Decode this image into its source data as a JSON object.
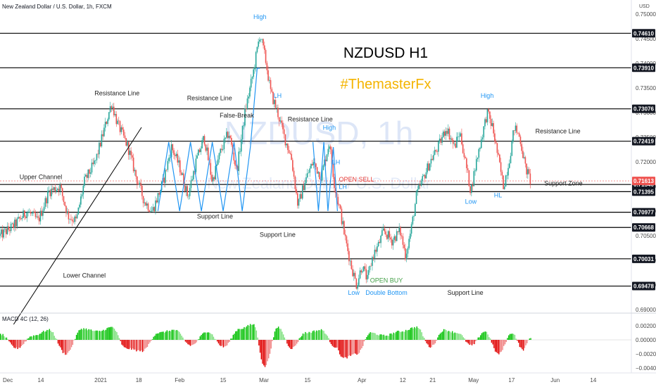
{
  "chart_data": {
    "type": "candlestick",
    "symbol_title": "New Zealand Dollar / U.S. Dollar, 1h, FXCM",
    "currency_label": "USD",
    "watermark": {
      "symbol": "NZDUSD, 1h",
      "name": "New Zealand Dollar / U.S. Dollar"
    },
    "heading": "NZDUSD H1",
    "brand": "#ThemasterFx",
    "ylim": [
      0.69,
      0.75
    ],
    "y_ticks": [
      {
        "value": 0.75,
        "label": "0.75000"
      },
      {
        "value": 0.745,
        "label": "0.74500"
      },
      {
        "value": 0.74,
        "label": "0.74000"
      },
      {
        "value": 0.735,
        "label": "0.73500"
      },
      {
        "value": 0.73,
        "label": "0.73000"
      },
      {
        "value": 0.725,
        "label": "0.72500"
      },
      {
        "value": 0.72,
        "label": "0.72000"
      },
      {
        "value": 0.715,
        "label": "0.71500"
      },
      {
        "value": 0.71,
        "label": "0.71000"
      },
      {
        "value": 0.705,
        "label": "0.70500"
      },
      {
        "value": 0.7,
        "label": "0.70000"
      },
      {
        "value": 0.695,
        "label": "0.69500"
      },
      {
        "value": 0.69,
        "label": "0.69000"
      }
    ],
    "x_ticks": [
      {
        "label": "Dec",
        "x": 0
      },
      {
        "label": "14",
        "x": 1.5
      },
      {
        "label": "2021",
        "x": 3.7
      },
      {
        "label": "18",
        "x": 5.1
      },
      {
        "label": "Feb",
        "x": 6.6
      },
      {
        "label": "15",
        "x": 8.2
      },
      {
        "label": "Mar",
        "x": 9.7
      },
      {
        "label": "15",
        "x": 11.3
      },
      {
        "label": "Apr",
        "x": 13.3
      },
      {
        "label": "12",
        "x": 14.8
      },
      {
        "label": "21",
        "x": 15.9
      },
      {
        "label": "May",
        "x": 17.4
      },
      {
        "label": "17",
        "x": 18.8
      },
      {
        "label": "Jun",
        "x": 20.4
      },
      {
        "label": "14",
        "x": 21.8
      }
    ],
    "x_range": [
      0,
      23.2
    ],
    "price_path": [
      [
        0.0,
        0.705
      ],
      [
        0.5,
        0.707
      ],
      [
        1.0,
        0.71
      ],
      [
        1.4,
        0.708
      ],
      [
        1.8,
        0.714
      ],
      [
        2.2,
        0.715
      ],
      [
        2.5,
        0.709
      ],
      [
        2.8,
        0.708
      ],
      [
        3.1,
        0.716
      ],
      [
        3.5,
        0.72
      ],
      [
        3.8,
        0.726
      ],
      [
        4.1,
        0.732
      ],
      [
        4.3,
        0.728
      ],
      [
        4.7,
        0.723
      ],
      [
        5.0,
        0.717
      ],
      [
        5.3,
        0.712
      ],
      [
        5.6,
        0.71
      ],
      [
        6.0,
        0.716
      ],
      [
        6.3,
        0.723
      ],
      [
        6.6,
        0.719
      ],
      [
        6.9,
        0.713
      ],
      [
        7.2,
        0.72
      ],
      [
        7.5,
        0.725
      ],
      [
        7.8,
        0.716
      ],
      [
        8.1,
        0.722
      ],
      [
        8.4,
        0.726
      ],
      [
        8.7,
        0.718
      ],
      [
        9.0,
        0.73
      ],
      [
        9.3,
        0.738
      ],
      [
        9.55,
        0.746
      ],
      [
        9.75,
        0.741
      ],
      [
        9.95,
        0.734
      ],
      [
        10.2,
        0.73
      ],
      [
        10.45,
        0.725
      ],
      [
        10.7,
        0.721
      ],
      [
        10.95,
        0.711
      ],
      [
        11.2,
        0.716
      ],
      [
        11.5,
        0.72
      ],
      [
        11.8,
        0.717
      ],
      [
        12.1,
        0.724
      ],
      [
        12.3,
        0.715
      ],
      [
        12.5,
        0.71
      ],
      [
        12.7,
        0.704
      ],
      [
        12.9,
        0.699
      ],
      [
        13.1,
        0.695
      ],
      [
        13.3,
        0.699
      ],
      [
        13.5,
        0.696
      ],
      [
        13.7,
        0.701
      ],
      [
        13.9,
        0.703
      ],
      [
        14.1,
        0.706
      ],
      [
        14.4,
        0.704
      ],
      [
        14.7,
        0.706
      ],
      [
        14.9,
        0.701
      ],
      [
        15.1,
        0.706
      ],
      [
        15.3,
        0.713
      ],
      [
        15.5,
        0.716
      ],
      [
        15.8,
        0.72
      ],
      [
        16.1,
        0.723
      ],
      [
        16.4,
        0.727
      ],
      [
        16.7,
        0.723
      ],
      [
        16.9,
        0.726
      ],
      [
        17.1,
        0.72
      ],
      [
        17.3,
        0.714
      ],
      [
        17.5,
        0.72
      ],
      [
        17.7,
        0.725
      ],
      [
        17.9,
        0.73
      ],
      [
        18.1,
        0.727
      ],
      [
        18.3,
        0.721
      ],
      [
        18.5,
        0.715
      ],
      [
        18.7,
        0.72
      ],
      [
        18.9,
        0.727
      ],
      [
        19.1,
        0.725
      ],
      [
        19.3,
        0.719
      ],
      [
        19.5,
        0.716
      ]
    ],
    "horizontal_levels": [
      {
        "value": 0.7461,
        "label": "0.74610"
      },
      {
        "value": 0.7391,
        "label": "0.73910"
      },
      {
        "value": 0.73076,
        "label": "0.73076"
      },
      {
        "value": 0.72419,
        "label": "0.72419"
      },
      {
        "value": 0.7154,
        "label": "0.71540"
      },
      {
        "value": 0.71395,
        "label": "0.71395"
      },
      {
        "value": 0.70977,
        "label": "0.70977"
      },
      {
        "value": 0.70668,
        "label": "0.70668"
      },
      {
        "value": 0.70031,
        "label": "0.70031"
      },
      {
        "value": 0.69478,
        "label": "0.69478"
      }
    ],
    "current_price": {
      "value": 0.71613,
      "label": "0.71613"
    },
    "trendline": [
      [
        0.5,
        0.687
      ],
      [
        5.2,
        0.727
      ]
    ],
    "zigzags": [
      {
        "points": [
          [
            5.8,
            0.71
          ],
          [
            6.2,
            0.724
          ],
          [
            6.6,
            0.71
          ],
          [
            7.0,
            0.724
          ],
          [
            7.4,
            0.71
          ],
          [
            7.8,
            0.724
          ],
          [
            8.2,
            0.71
          ],
          [
            8.6,
            0.724
          ],
          [
            8.9,
            0.71
          ],
          [
            9.2,
            0.723
          ],
          [
            9.45,
            0.739
          ],
          [
            9.55,
            0.739
          ]
        ]
      },
      {
        "points": [
          [
            11.5,
            0.724
          ],
          [
            11.7,
            0.71
          ],
          [
            11.9,
            0.724
          ],
          [
            12.05,
            0.71
          ],
          [
            12.25,
            0.723
          ],
          [
            12.4,
            0.71
          ]
        ]
      }
    ],
    "annotations": [
      {
        "text": "High",
        "x": 9.55,
        "y": 0.749,
        "color": "#2196f3"
      },
      {
        "text": "Resistance Line",
        "x": 4.3,
        "y": 0.7335,
        "color": "#222222"
      },
      {
        "text": "Resistance Line",
        "x": 7.7,
        "y": 0.7325,
        "color": "#222222"
      },
      {
        "text": "LH",
        "x": 10.2,
        "y": 0.733,
        "color": "#2196f3"
      },
      {
        "text": "False-Break",
        "x": 8.7,
        "y": 0.729,
        "color": "#222222"
      },
      {
        "text": "Resistance Line",
        "x": 11.4,
        "y": 0.7282,
        "color": "#222222"
      },
      {
        "text": "High",
        "x": 12.1,
        "y": 0.7265,
        "color": "#2196f3"
      },
      {
        "text": "LH",
        "x": 12.35,
        "y": 0.7195,
        "color": "#2196f3"
      },
      {
        "text": "LH",
        "x": 12.6,
        "y": 0.7145,
        "color": "#2196f3"
      },
      {
        "text": "OPEN SELL",
        "x": 13.1,
        "y": 0.716,
        "color": "#e53935"
      },
      {
        "text": "Upper Channel",
        "x": 1.5,
        "y": 0.7165,
        "color": "#222222"
      },
      {
        "text": "Support Line",
        "x": 7.9,
        "y": 0.7085,
        "color": "#222222"
      },
      {
        "text": "Support Line",
        "x": 10.2,
        "y": 0.7048,
        "color": "#222222"
      },
      {
        "text": "Lower Channel",
        "x": 3.1,
        "y": 0.6965,
        "color": "#222222"
      },
      {
        "text": "OPEN BUY",
        "x": 14.2,
        "y": 0.6955,
        "color": "#43a047"
      },
      {
        "text": "Low",
        "x": 13.0,
        "y": 0.693,
        "color": "#2196f3"
      },
      {
        "text": "Double Bottom",
        "x": 14.2,
        "y": 0.693,
        "color": "#2196f3"
      },
      {
        "text": "Support Line",
        "x": 17.1,
        "y": 0.693,
        "color": "#222222"
      },
      {
        "text": "High",
        "x": 17.9,
        "y": 0.733,
        "color": "#2196f3"
      },
      {
        "text": "Resistance Line",
        "x": 20.5,
        "y": 0.7258,
        "color": "#222222"
      },
      {
        "text": "Support Zone",
        "x": 20.7,
        "y": 0.7152,
        "color": "#222222"
      },
      {
        "text": "Low",
        "x": 17.3,
        "y": 0.7115,
        "color": "#2196f3"
      },
      {
        "text": "HL",
        "x": 18.3,
        "y": 0.7128,
        "color": "#2196f3"
      }
    ],
    "macd": {
      "label": "MACD 4C (12, 26)",
      "ylim": [
        -0.0045,
        0.0035
      ],
      "ticks": [
        {
          "value": 0.002,
          "label": "0.00200"
        },
        {
          "value": 0.0,
          "label": "0.00000"
        },
        {
          "value": -0.002,
          "label": "−0.00200"
        },
        {
          "value": -0.004,
          "label": "−0.00400"
        }
      ],
      "x_range": [
        0,
        23.2
      ],
      "keyframes": [
        [
          0.0,
          0.0008
        ],
        [
          0.6,
          -0.0012
        ],
        [
          1.2,
          0.0006
        ],
        [
          1.8,
          0.0014
        ],
        [
          2.4,
          -0.002
        ],
        [
          3.0,
          0.0016
        ],
        [
          3.6,
          0.0012
        ],
        [
          4.1,
          0.0018
        ],
        [
          4.6,
          -0.0012
        ],
        [
          5.2,
          -0.0016
        ],
        [
          5.8,
          0.001
        ],
        [
          6.4,
          0.0014
        ],
        [
          7.0,
          -0.0008
        ],
        [
          7.6,
          0.0012
        ],
        [
          8.2,
          -0.001
        ],
        [
          8.8,
          0.0016
        ],
        [
          9.3,
          0.0022
        ],
        [
          9.7,
          -0.0038
        ],
        [
          10.2,
          0.0018
        ],
        [
          10.7,
          -0.0012
        ],
        [
          11.2,
          0.001
        ],
        [
          11.8,
          0.0014
        ],
        [
          12.3,
          -0.001
        ],
        [
          12.6,
          -0.0026
        ],
        [
          13.1,
          -0.002
        ],
        [
          13.6,
          0.001
        ],
        [
          14.1,
          0.0006
        ],
        [
          14.7,
          0.0012
        ],
        [
          15.3,
          0.0018
        ],
        [
          15.8,
          -0.001
        ],
        [
          16.3,
          0.0014
        ],
        [
          16.8,
          0.001
        ],
        [
          17.3,
          -0.0008
        ],
        [
          17.8,
          0.0012
        ],
        [
          18.3,
          -0.002
        ],
        [
          18.8,
          0.001
        ],
        [
          19.2,
          -0.0014
        ],
        [
          19.5,
          0.0004
        ]
      ],
      "colors": {
        "pos_strong": "#00c000",
        "pos_weak": "#7ee07e",
        "neg_strong": "#e00000",
        "neg_weak": "#f08080"
      }
    },
    "colors": {
      "up": "#26a69a",
      "down": "#ef5350",
      "level_line": "#000000",
      "zigzag": "#2196f3",
      "heading": "#000000",
      "brand": "#f4b400",
      "current_price_tag": "#ef5350",
      "level_tag": "#131722",
      "watermark": "#dde6f7"
    }
  }
}
